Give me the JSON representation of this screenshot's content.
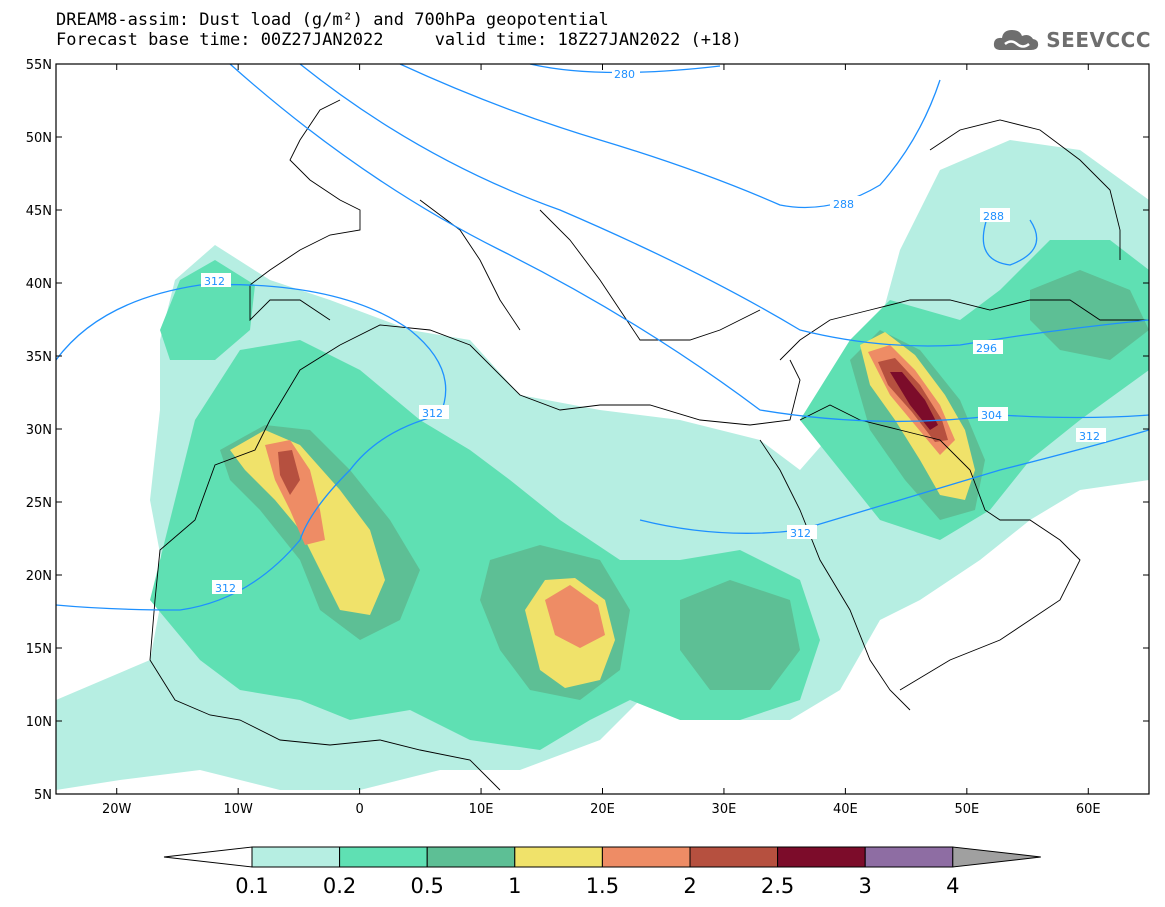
{
  "title": {
    "line1": "DREAM8-assim: Dust load (g/m²) and 700hPa geopotential",
    "line2": "Forecast base time: 00Z27JAN2022     valid time: 18Z27JAN2022 (+18)"
  },
  "logo": {
    "text": "SEEVCCC",
    "icon": "cloud-icon"
  },
  "axes": {
    "lon_labels": [
      "20W",
      "10W",
      "0",
      "10E",
      "20E",
      "30E",
      "40E",
      "50E",
      "60E"
    ],
    "lon_values": [
      -20,
      -10,
      0,
      10,
      20,
      30,
      40,
      50,
      60
    ],
    "lat_labels": [
      "55N",
      "50N",
      "45N",
      "40N",
      "35N",
      "30N",
      "25N",
      "20N",
      "15N",
      "10N",
      "5N"
    ],
    "lat_values": [
      55,
      50,
      45,
      40,
      35,
      30,
      25,
      20,
      15,
      10,
      5
    ],
    "lon_range": [
      -25,
      65
    ],
    "lat_range": [
      5,
      55
    ]
  },
  "colorbar": {
    "labels": [
      "0.1",
      "0.2",
      "0.5",
      "1",
      "1.5",
      "2",
      "2.5",
      "3",
      "4"
    ],
    "colors": [
      "#b6eee2",
      "#5fe0b3",
      "#5dbf95",
      "#f0e26a",
      "#ee8c65",
      "#b6503f",
      "#7c0c2a",
      "#8e6da3"
    ],
    "end_colors": {
      "low": "#ffffff",
      "high": "#a0a0a0"
    }
  },
  "contour_labels": [
    "280",
    "288",
    "288",
    "296",
    "304",
    "312",
    "312",
    "312",
    "312",
    "312"
  ],
  "colors": {
    "contour": "#1e90ff",
    "coast": "#000000"
  }
}
